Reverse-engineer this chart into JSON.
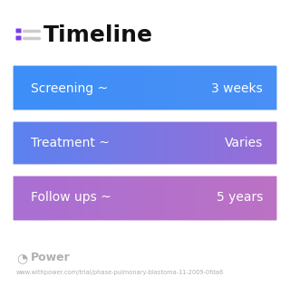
{
  "title": "Timeline",
  "title_icon_color": "#7c3aed",
  "background_color": "#ffffff",
  "rows": [
    {
      "label": "Screening ~",
      "value": "3 weeks",
      "color_left": "#3d8ef8",
      "color_right": "#4a90f5"
    },
    {
      "label": "Treatment ~",
      "value": "Varies",
      "color_left": "#5b82f0",
      "color_right": "#9b6dd6"
    },
    {
      "label": "Follow ups ~",
      "value": "5 years",
      "color_left": "#a96fd4",
      "color_right": "#bc72c4"
    }
  ],
  "footer_text": "Power",
  "footer_url": "www.withpower.com/trial/phase-pulmonary-blastoma-11-2009-0fda6",
  "footer_color": "#b0b0b0",
  "text_color": "#ffffff",
  "label_fontsize": 10,
  "value_fontsize": 10,
  "title_fontsize": 18
}
